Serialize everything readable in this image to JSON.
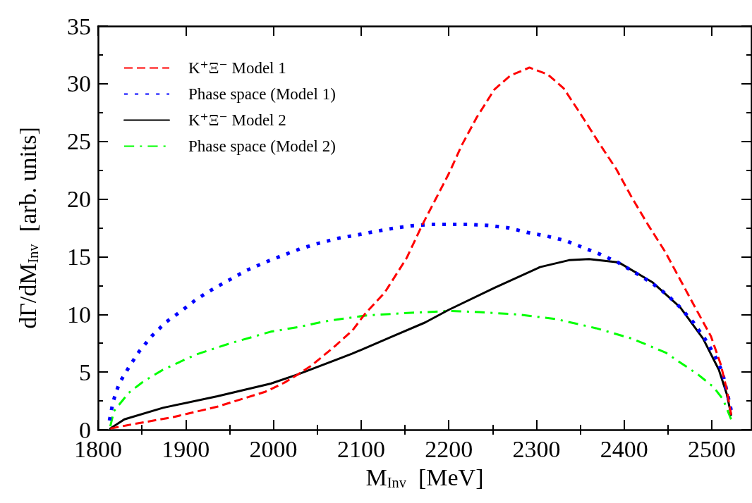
{
  "chart_data": {
    "type": "line",
    "xlabel": "M$_{Inv}$  [MeV]",
    "ylabel": "dΓ/dM$_{Inv}$  [arb. units]",
    "xlim": [
      1800,
      2545
    ],
    "xticks": [
      1800,
      {
        "value": 1850,
        "label": null
      },
      1900,
      {
        "value": 1950,
        "label": null
      },
      2000,
      {
        "value": 2050,
        "label": null
      },
      2100,
      {
        "value": 2150,
        "label": null
      },
      2200,
      {
        "value": 2250,
        "label": null
      },
      2300,
      {
        "value": 2350,
        "label": null
      },
      2400,
      {
        "value": 2450,
        "label": null
      },
      2500
    ],
    "ylim": [
      0,
      35
    ],
    "yticks": [
      0,
      {
        "value": 2.5,
        "label": null
      },
      5,
      {
        "value": 7.5,
        "label": null
      },
      10,
      {
        "value": 12.5,
        "label": null
      },
      15,
      {
        "value": 17.5,
        "label": null
      },
      20,
      {
        "value": 22.5,
        "label": null
      },
      25,
      {
        "value": 27.5,
        "label": null
      },
      30,
      {
        "value": 32.5,
        "label": null
      },
      35
    ],
    "grid": false,
    "legend": "top left",
    "marker": "none",
    "series": [
      {
        "name": "K⁺Ξ⁻ Model 1",
        "color": "#ff0000",
        "line_style": "dashed",
        "x": [
          1814,
          1834,
          1886,
          1936,
          1991,
          2013,
          2028,
          2044,
          2071,
          2090,
          2105,
          2127,
          2152,
          2170,
          2183,
          2200,
          2215,
          2232,
          2252,
          2270,
          2292,
          2313,
          2331,
          2351,
          2371,
          2391,
          2409,
          2427,
          2447,
          2464,
          2481,
          2499,
          2510,
          2517,
          2522
        ],
        "values": [
          0.1,
          0.4,
          1.1,
          2.0,
          3.3,
          4.1,
          4.8,
          5.6,
          7.3,
          8.6,
          10.1,
          11.9,
          14.9,
          17.8,
          19.7,
          22.2,
          24.7,
          27.1,
          29.5,
          30.7,
          31.4,
          30.8,
          29.6,
          27.3,
          24.9,
          22.6,
          20.1,
          17.8,
          15.4,
          13.0,
          10.6,
          8.1,
          5.7,
          3.5,
          1.3
        ]
      },
      {
        "name": "Phase space (Model 1)",
        "color": "#0000ff",
        "line_style": "dotted",
        "x": [
          1813,
          1817,
          1824,
          1835,
          1847,
          1861,
          1877,
          1895,
          1912,
          1931,
          1950,
          1969,
          1990,
          2010,
          2031,
          2053,
          2074,
          2096,
          2117,
          2139,
          2160,
          2180,
          2202,
          2224,
          2247,
          2268,
          2290,
          2311,
          2333,
          2353,
          2373,
          2393,
          2413,
          2432,
          2449,
          2464,
          2479,
          2492,
          2503,
          2512,
          2517,
          2522
        ],
        "values": [
          0.8,
          2.4,
          4.0,
          5.4,
          6.8,
          8.1,
          9.3,
          10.3,
          11.3,
          12.2,
          13.0,
          13.8,
          14.5,
          15.1,
          15.7,
          16.2,
          16.6,
          16.9,
          17.2,
          17.5,
          17.7,
          17.8,
          17.8,
          17.8,
          17.7,
          17.5,
          17.1,
          16.8,
          16.4,
          15.8,
          15.2,
          14.5,
          13.6,
          12.7,
          11.7,
          10.6,
          9.3,
          7.9,
          6.5,
          5.0,
          3.4,
          1.7
        ]
      },
      {
        "name": "K⁺Ξ⁻ Model 2",
        "color": "#000000",
        "line_style": "solid",
        "x": [
          1814,
          1830,
          1874,
          1936,
          1997,
          2028,
          2090,
          2136,
          2173,
          2200,
          2252,
          2304,
          2337,
          2360,
          2394,
          2432,
          2464,
          2490,
          2508,
          2517,
          2522
        ],
        "values": [
          0.1,
          0.9,
          1.9,
          2.9,
          4.0,
          4.8,
          6.6,
          8.1,
          9.3,
          10.4,
          12.3,
          14.1,
          14.7,
          14.8,
          14.5,
          12.8,
          10.6,
          7.9,
          5.2,
          3.1,
          1.3
        ]
      },
      {
        "name": "Phase space (Model 2)",
        "color": "#00ff00",
        "line_style": "dashdot",
        "x": [
          1814,
          1818,
          1835,
          1852,
          1874,
          1911,
          1951,
          1997,
          2028,
          2059,
          2105,
          2148,
          2200,
          2235,
          2278,
          2322,
          2368,
          2409,
          2447,
          2484,
          2502,
          2513,
          2522
        ],
        "values": [
          0.3,
          1.6,
          3.2,
          4.2,
          5.2,
          6.5,
          7.5,
          8.5,
          8.9,
          9.4,
          9.9,
          10.1,
          10.3,
          10.2,
          10.0,
          9.6,
          8.8,
          7.9,
          6.7,
          4.8,
          3.7,
          2.6,
          0.9
        ]
      }
    ]
  }
}
